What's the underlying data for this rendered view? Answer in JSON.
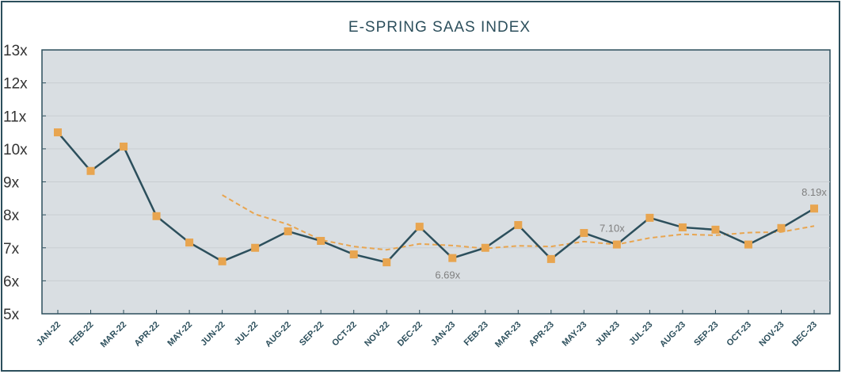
{
  "chart_data": {
    "type": "line",
    "title": "E-SPRING SAAS INDEX",
    "xlabel": "",
    "ylabel": "",
    "categories": [
      "JAN-22",
      "FEB-22",
      "MAR-22",
      "APR-22",
      "MAY-22",
      "JUN-22",
      "JUL-22",
      "AUG-22",
      "SEP-22",
      "OCT-22",
      "NOV-22",
      "DEC-22",
      "JAN-23",
      "FEB-23",
      "MAR-23",
      "APR-23",
      "MAY-23",
      "JUN-23",
      "JUL-23",
      "AUG-23",
      "SEP-23",
      "OCT-23",
      "NOV-23",
      "DEC-23"
    ],
    "ylim": [
      5,
      13
    ],
    "yticks": [
      "5x",
      "6x",
      "7x",
      "8x",
      "9x",
      "10x",
      "11x",
      "12x",
      "13x"
    ],
    "grid": true,
    "legend": "none",
    "series": [
      {
        "values": [
          10.5,
          9.33,
          10.07,
          7.96,
          7.16,
          6.59,
          7.0,
          7.5,
          7.21,
          6.8,
          6.56,
          7.64,
          6.69,
          7.0,
          7.69,
          6.66,
          7.45,
          7.1,
          7.91,
          7.62,
          7.55,
          7.1,
          7.6,
          8.19
        ],
        "color": "#2c4f5c",
        "marker": "square",
        "marker_color": "#e8a550"
      },
      {
        "values": [
          null,
          null,
          null,
          null,
          null,
          8.6,
          8.02,
          7.71,
          7.24,
          7.04,
          6.94,
          7.12,
          7.07,
          6.98,
          7.06,
          7.04,
          7.19,
          7.1,
          7.3,
          7.41,
          7.38,
          7.46,
          7.48,
          7.66
        ],
        "color": "#e8a550",
        "style": "dashed"
      }
    ],
    "annotations": [
      {
        "index": 12,
        "text": "6.69x",
        "position": "below"
      },
      {
        "index": 17,
        "text": "7.10x",
        "position": "above"
      },
      {
        "index": 23,
        "text": "8.19x",
        "position": "above"
      }
    ]
  }
}
